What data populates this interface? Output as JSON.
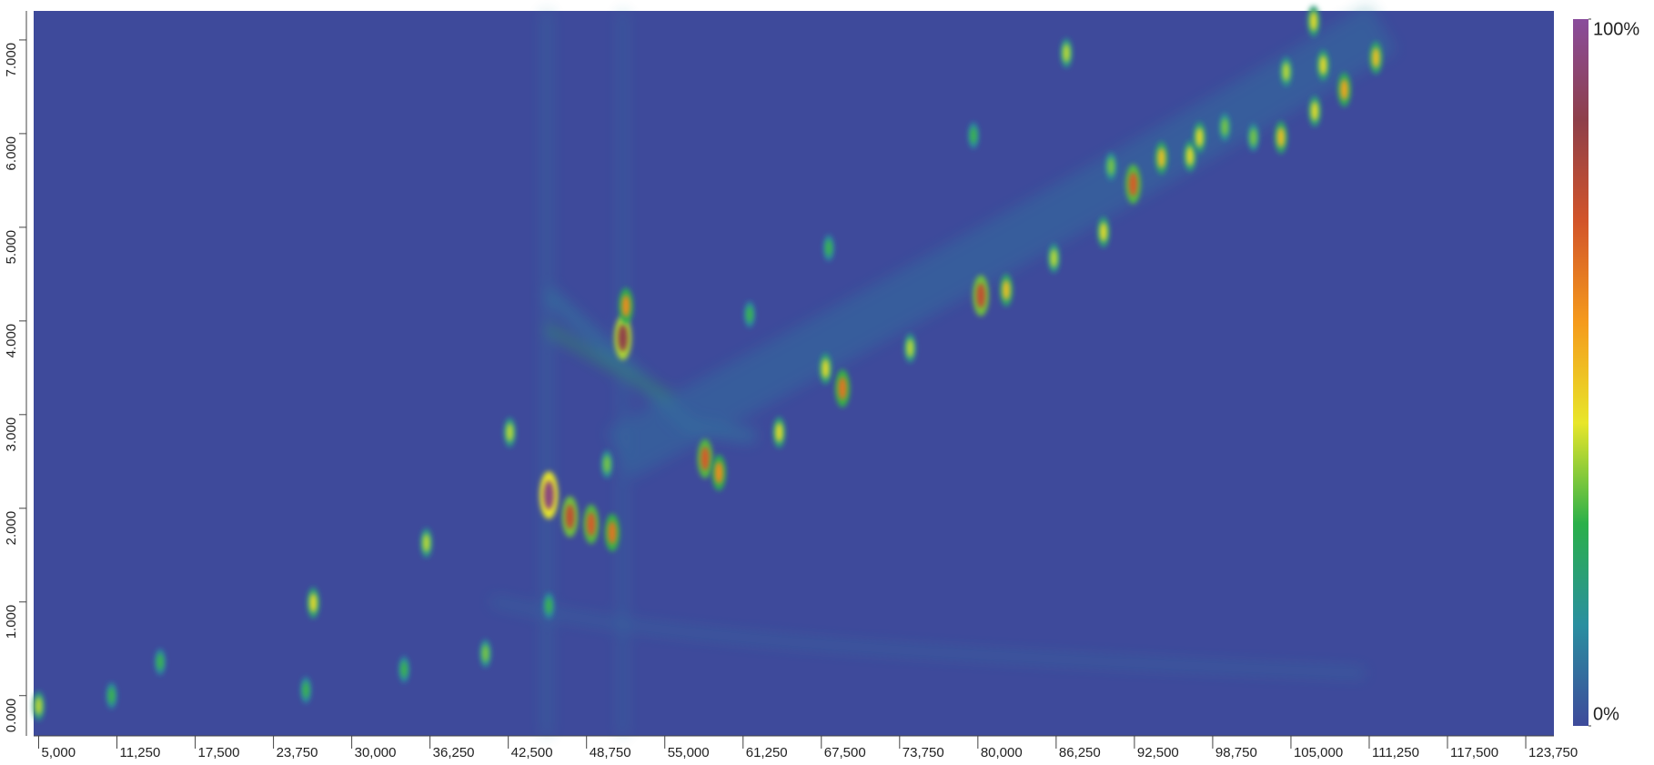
{
  "chart_data": {
    "type": "heatmap",
    "background": "#3e4a9b",
    "colorscale": [
      "#3e4a9b",
      "#2a8fa0",
      "#2ab04a",
      "#e8e62a",
      "#f59a1c",
      "#d2542a",
      "#8e3f4a",
      "#8a4c9c"
    ],
    "clim": [
      0,
      100
    ],
    "cticks": [
      {
        "value": 0,
        "label": "0%"
      },
      {
        "value": 100,
        "label": "100%"
      }
    ],
    "xlim": [
      4600,
      126000
    ],
    "xticks": [
      {
        "value": 5000,
        "label": "5,000"
      },
      {
        "value": 11250,
        "label": "11,250"
      },
      {
        "value": 17500,
        "label": "17,500"
      },
      {
        "value": 23750,
        "label": "23,750"
      },
      {
        "value": 30000,
        "label": "30,000"
      },
      {
        "value": 36250,
        "label": "36,250"
      },
      {
        "value": 42500,
        "label": "42,500"
      },
      {
        "value": 48750,
        "label": "48,750"
      },
      {
        "value": 55000,
        "label": "55,000"
      },
      {
        "value": 61250,
        "label": "61,250"
      },
      {
        "value": 67500,
        "label": "67,500"
      },
      {
        "value": 73750,
        "label": "73,750"
      },
      {
        "value": 80000,
        "label": "80,000"
      },
      {
        "value": 86250,
        "label": "86,250"
      },
      {
        "value": 92500,
        "label": "92,500"
      },
      {
        "value": 98750,
        "label": "98,750"
      },
      {
        "value": 105000,
        "label": "105,000"
      },
      {
        "value": 111250,
        "label": "111,250"
      },
      {
        "value": 117500,
        "label": "117,500"
      },
      {
        "value": 123750,
        "label": "123,750"
      }
    ],
    "ylim": [
      -0.43,
      7.31
    ],
    "yticks": [
      {
        "value": 0,
        "label": "0.000"
      },
      {
        "value": 1,
        "label": "1.000"
      },
      {
        "value": 2,
        "label": "2.000"
      },
      {
        "value": 3,
        "label": "3.000"
      },
      {
        "value": 4,
        "label": "4.000"
      },
      {
        "value": 5,
        "label": "5.000"
      },
      {
        "value": 6,
        "label": "6.000"
      },
      {
        "value": 7,
        "label": "7.000"
      }
    ],
    "x": [
      45740,
      47430,
      49120,
      50800,
      51650,
      51900,
      58220,
      59320,
      64130,
      69190,
      67840,
      74590,
      80240,
      82270,
      86070,
      90030,
      92400,
      94660,
      96940,
      97700,
      99720,
      102000,
      104200,
      104620,
      106900,
      107570,
      106810,
      109260,
      111790,
      87070,
      26930,
      35960,
      42620,
      40680,
      34180,
      26340,
      14700,
      10820,
      5000,
      45740,
      50380,
      61770,
      68090,
      79650,
      90630
    ],
    "y": [
      2.14,
      1.91,
      1.83,
      1.74,
      3.82,
      4.16,
      2.53,
      2.38,
      2.81,
      3.28,
      3.49,
      3.71,
      4.27,
      4.33,
      4.67,
      4.95,
      5.46,
      5.74,
      5.76,
      5.96,
      6.07,
      5.96,
      5.96,
      6.66,
      6.24,
      6.73,
      7.2,
      6.47,
      6.81,
      6.86,
      0.99,
      1.63,
      2.81,
      0.45,
      0.28,
      0.06,
      0.36,
      0.0,
      -0.11,
      0.96,
      2.47,
      4.07,
      4.78,
      5.98,
      5.65
    ],
    "values": [
      95,
      75,
      70,
      65,
      85,
      60,
      70,
      60,
      45,
      65,
      45,
      40,
      75,
      50,
      40,
      45,
      70,
      50,
      45,
      45,
      35,
      35,
      50,
      40,
      45,
      45,
      45,
      55,
      50,
      40,
      45,
      40,
      40,
      35,
      30,
      30,
      30,
      30,
      40,
      30,
      35,
      30,
      30,
      30,
      35
    ]
  }
}
